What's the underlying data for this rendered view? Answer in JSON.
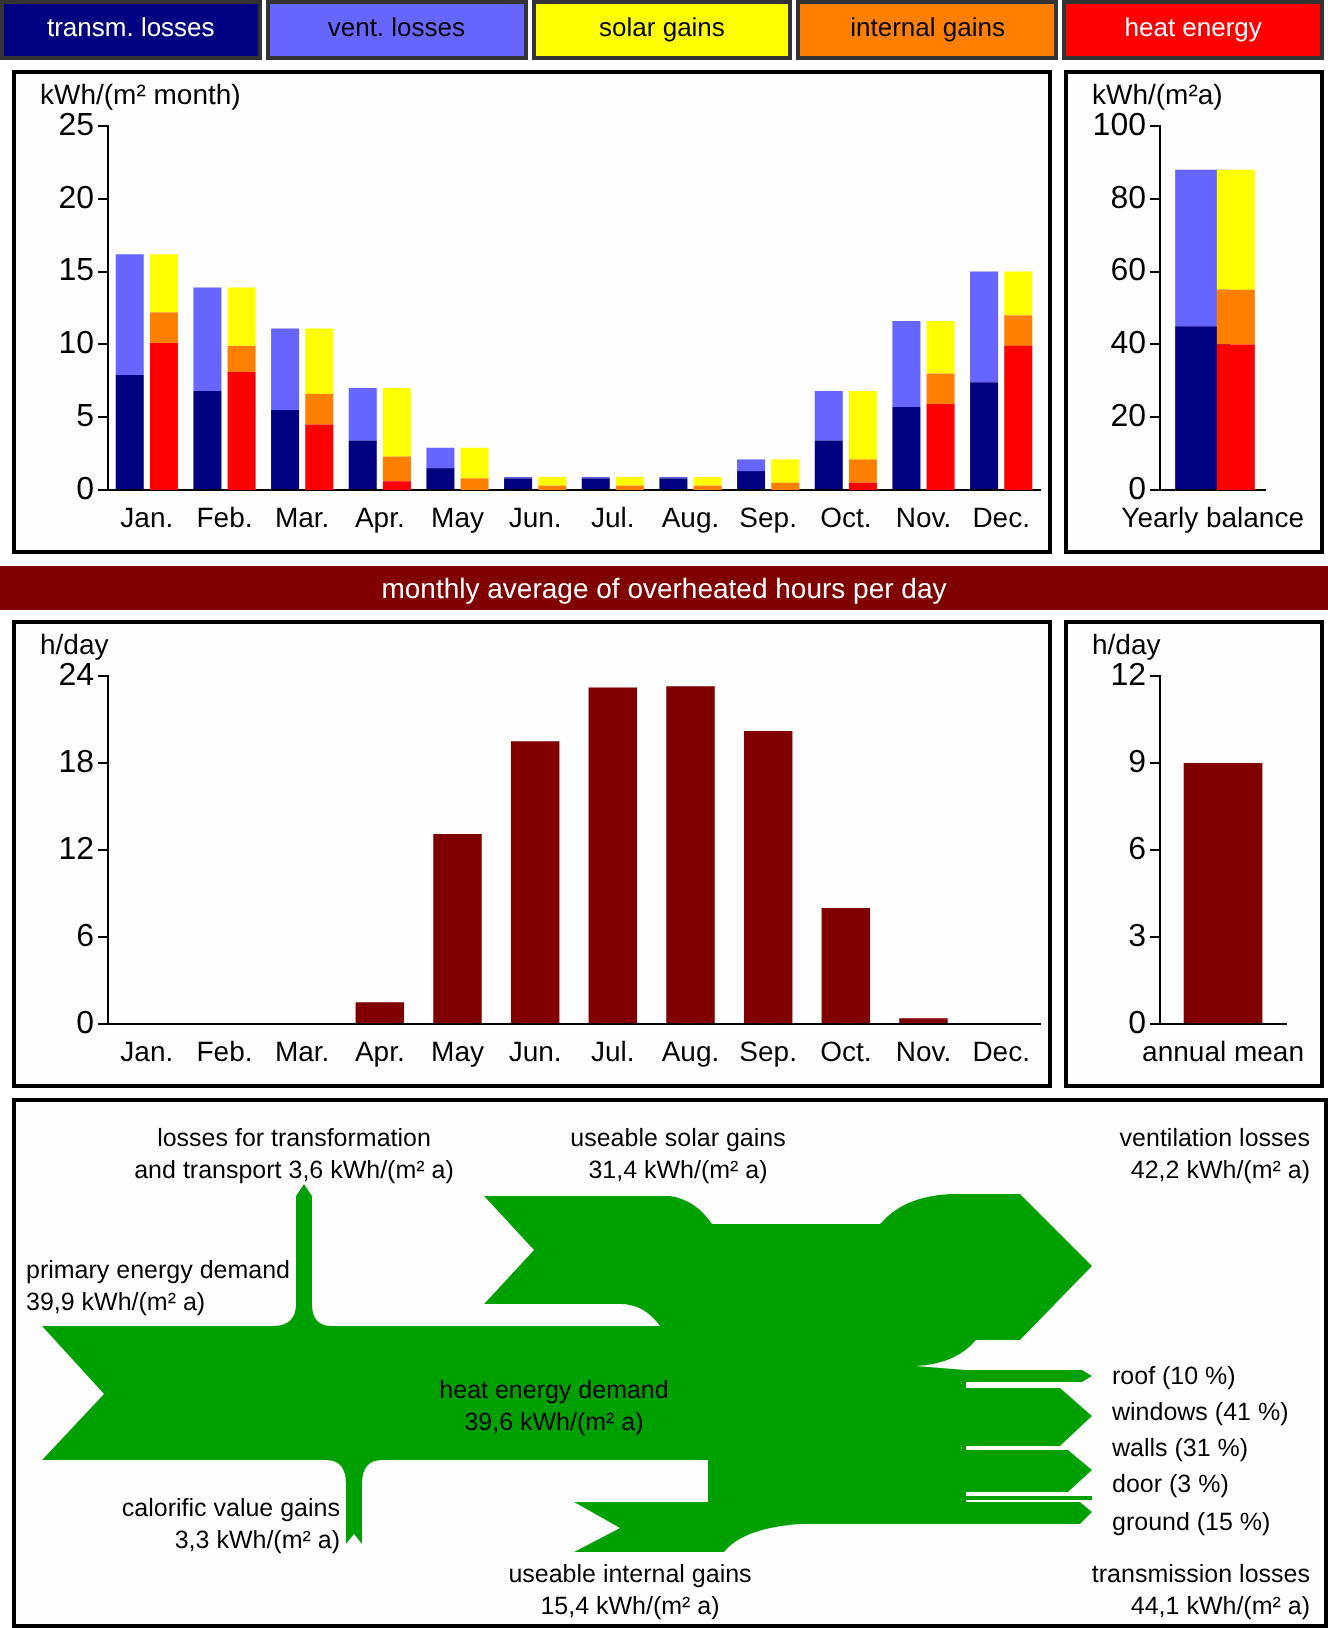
{
  "chart_data": [
    {
      "type": "bar",
      "stacked": true,
      "ylabel": "kWh/(m² month)",
      "legend": "top",
      "grid": false,
      "tick_labels": "y",
      "categories": [
        null,
        null,
        null,
        null,
        null,
        null,
        null,
        null,
        null,
        null,
        null,
        null
      ],
      "series": [
        {
          "name": "transm. losses",
          "color": "#000080",
          "values": [
            7.9,
            6.8,
            5.5,
            3.4,
            1.5,
            0.8,
            0.8,
            0.8,
            1.3,
            3.4,
            5.7,
            7.4
          ]
        },
        {
          "name": "vent. losses",
          "color": "#6666ff",
          "values": [
            8.3,
            7.1,
            5.6,
            3.6,
            1.4,
            0.1,
            0.1,
            0.1,
            0.8,
            3.4,
            5.9,
            7.6
          ]
        }
      ],
      "ylim": [
        0,
        25
      ],
      "yticks": [
        0,
        5,
        10,
        15,
        20,
        25
      ]
    },
    {
      "type": "bar",
      "stacked": true,
      "legend": "top",
      "grid": false,
      "tick_labels": "x",
      "categories": [
        "Jan.",
        "Feb.",
        "Mar.",
        "Apr.",
        "May",
        "Jun.",
        "Jul.",
        "Aug.",
        "Sep.",
        "Oct.",
        "Nov.",
        "Dec."
      ],
      "series": [
        {
          "name": "heat energy",
          "color": "#ff0000",
          "values": [
            10.1,
            8.1,
            4.5,
            0.6,
            0,
            0,
            0,
            0,
            0,
            0.5,
            5.9,
            9.9
          ]
        },
        {
          "name": "internal gains",
          "color": "#ff8000",
          "values": [
            2.1,
            1.8,
            2.1,
            1.7,
            0.8,
            0.3,
            0.3,
            0.3,
            0.5,
            1.6,
            2.1,
            2.1
          ]
        },
        {
          "name": "solar gains",
          "color": "#ffff00",
          "values": [
            4.0,
            4.0,
            4.5,
            4.7,
            2.1,
            0.6,
            0.6,
            0.6,
            1.6,
            4.7,
            3.6,
            3.0
          ]
        }
      ],
      "ylim": [
        0,
        25
      ],
      "yticks": [
        0,
        5,
        10,
        15,
        20,
        25
      ]
    },
    {
      "type": "bar",
      "stacked": true,
      "ylabel": "kWh/(m²a)",
      "grid": false,
      "tick_labels": "y",
      "categories": [
        null
      ],
      "series": [
        {
          "color": "#000080",
          "values": [
            45
          ]
        },
        {
          "color": "#6666ff",
          "values": [
            43
          ]
        }
      ],
      "ylim": [
        0,
        100
      ],
      "yticks": [
        0,
        20,
        40,
        60,
        80,
        100
      ]
    },
    {
      "type": "bar",
      "stacked": true,
      "grid": false,
      "tick_labels": "x",
      "categories": [
        "Yearly balance"
      ],
      "series": [
        {
          "color": "#ff0000",
          "values": [
            40
          ]
        },
        {
          "color": "#ff8000",
          "values": [
            15
          ]
        },
        {
          "color": "#ffff00",
          "values": [
            33
          ]
        }
      ],
      "ylim": [
        0,
        100
      ],
      "yticks": [
        0,
        20,
        40,
        60,
        80,
        100
      ]
    },
    {
      "type": "bar",
      "title": "monthly average of overheated hours per day",
      "ylabel": "h/day",
      "grid": false,
      "categories": [
        "Jan.",
        "Feb.",
        "Mar.",
        "Apr.",
        "May",
        "Jun.",
        "Jul.",
        "Aug.",
        "Sep.",
        "Oct.",
        "Nov.",
        "Dec."
      ],
      "values": [
        0,
        0,
        0,
        1.5,
        13.1,
        19.5,
        23.2,
        23.3,
        20.2,
        8.0,
        0.4,
        0
      ],
      "color": "#800000",
      "ylim": [
        0,
        24
      ],
      "yticks": [
        0,
        6,
        12,
        18,
        24
      ]
    },
    {
      "type": "bar",
      "ylabel": "h/day",
      "grid": false,
      "categories": [
        "annual mean"
      ],
      "values": [
        9.0
      ],
      "color": "#800000",
      "ylim": [
        0,
        12
      ],
      "yticks": [
        0,
        3,
        6,
        9,
        12
      ]
    },
    {
      "type": "other",
      "annotations": [
        "losses for transformation\nand transport 3,6 kWh/(m² a)",
        "useable solar gains\n31,4 kWh/(m² a)",
        "ventilation losses\n42,2 kWh/(m² a)",
        "primary energy demand\n39,9 kWh/(m² a)",
        "heat energy demand\n39,6 kWh/(m² a)",
        "calorific value gains\n3,3 kWh/(m² a)",
        "useable internal gains\n15,4 kWh/(m² a)",
        "transmission losses\n44,1 kWh/(m² a)",
        "roof (10 %)",
        "windows (41 %)",
        "walls (31 %)",
        "door (3 %)",
        "ground (15 %)"
      ]
    }
  ]
}
